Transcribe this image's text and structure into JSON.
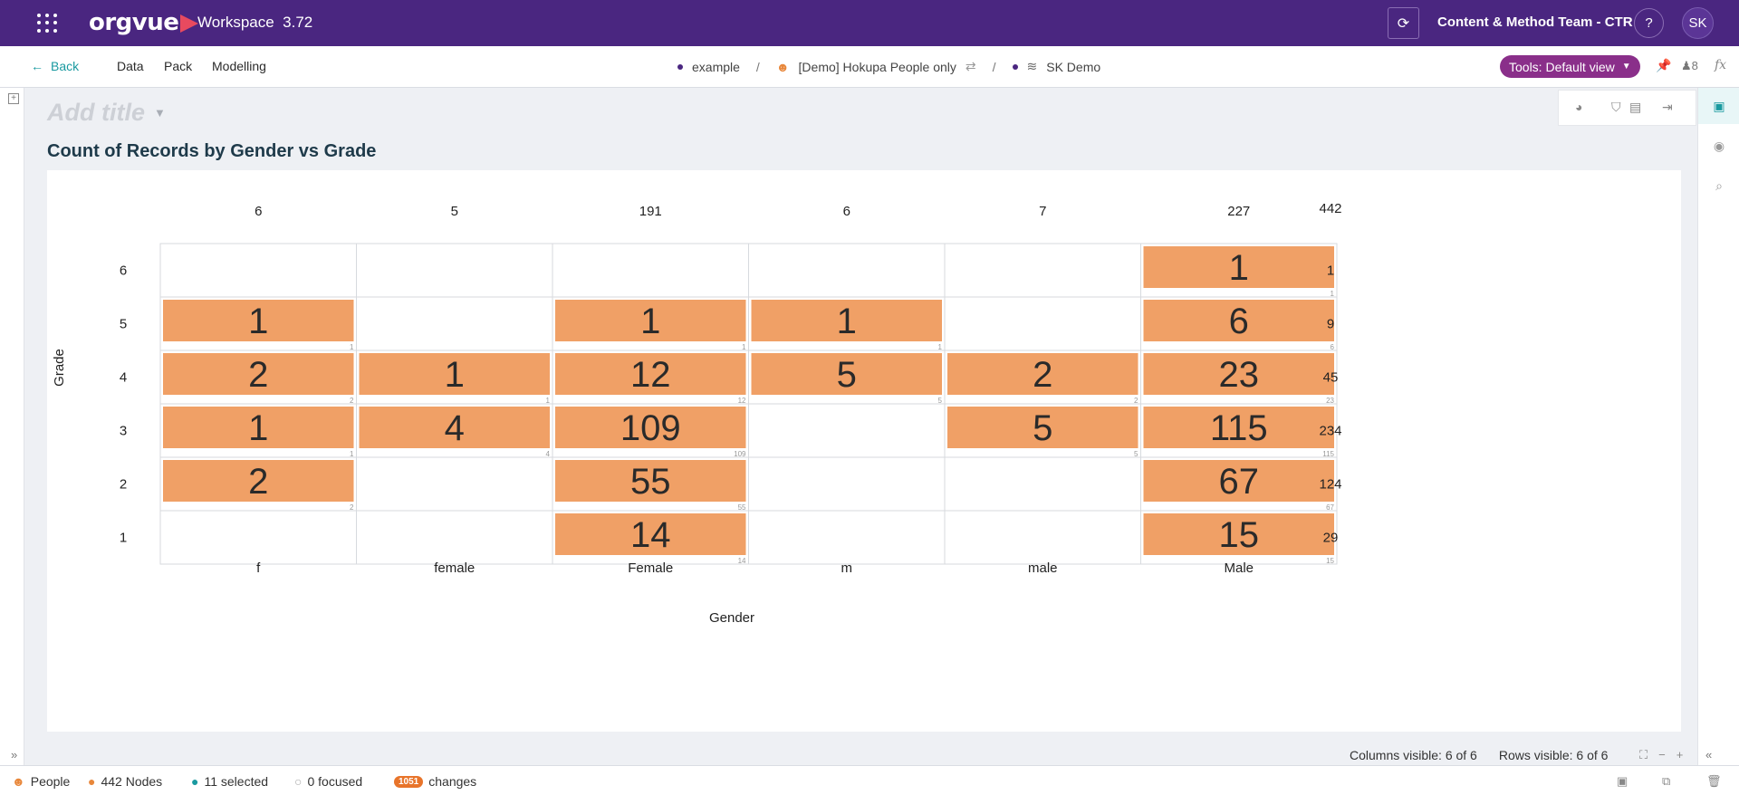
{
  "header": {
    "brand": "orgvue",
    "workspace_label": "Workspace",
    "version": "3.72",
    "team": "Content & Method Team - CTR",
    "help": "?",
    "avatar_initials": "SK"
  },
  "nav": {
    "back": "Back",
    "items": [
      "Data",
      "Pack",
      "Modelling"
    ],
    "crumbs": [
      "example",
      "[Demo] Hokupa People only",
      "SK Demo"
    ],
    "tools_label": "Tools: Default view",
    "users_count": "8",
    "fx": "fx"
  },
  "page": {
    "add_title_placeholder": "Add title",
    "chart_title": "Count of Records by Gender vs Grade"
  },
  "chart_data": {
    "type": "heatmap",
    "title": "Count of Records by Gender vs Grade",
    "xlabel": "Gender",
    "ylabel": "Grade",
    "categories_x": [
      "f",
      "female",
      "Female",
      "m",
      "male",
      "Male"
    ],
    "categories_y": [
      "6",
      "5",
      "4",
      "3",
      "2",
      "1"
    ],
    "values": [
      [
        null,
        null,
        null,
        null,
        null,
        1
      ],
      [
        1,
        null,
        1,
        1,
        null,
        6
      ],
      [
        2,
        1,
        12,
        5,
        2,
        23
      ],
      [
        1,
        4,
        109,
        null,
        5,
        115
      ],
      [
        2,
        null,
        55,
        null,
        null,
        67
      ],
      [
        null,
        null,
        14,
        null,
        null,
        15
      ]
    ],
    "column_totals": [
      6,
      5,
      191,
      6,
      7,
      227
    ],
    "row_totals": [
      1,
      9,
      45,
      234,
      124,
      29
    ],
    "grand_total": 442,
    "cell_color": "#f0a066"
  },
  "footer": {
    "columns_visible": "Columns visible: 6 of 6",
    "rows_visible": "Rows visible: 6 of 6"
  },
  "statusbar": {
    "dataset": "People",
    "nodes": "442 Nodes",
    "selected": "11 selected",
    "focused": "0 focused",
    "changes_count": "1051",
    "changes_label": "changes"
  },
  "colors": {
    "header_bg": "#4a2680",
    "accent": "#1a9aa0",
    "tools_bg": "#8a2f8a",
    "badge": "#e8742a"
  }
}
